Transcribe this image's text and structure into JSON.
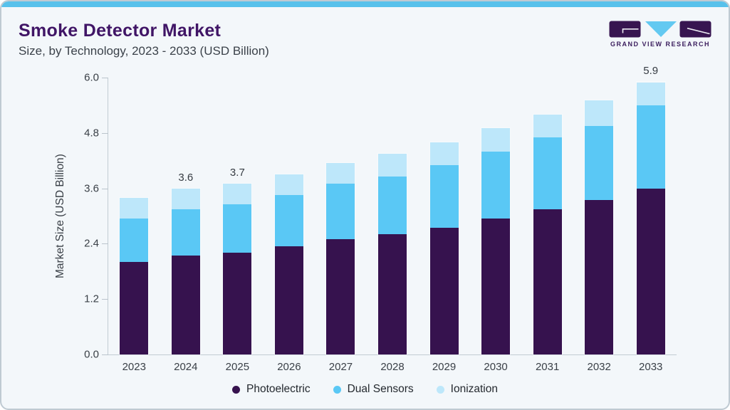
{
  "header": {
    "title": "Smoke Detector Market",
    "subtitle": "Size, by Technology, 2023 - 2033 (USD Billion)",
    "logo_text": "GRAND VIEW RESEARCH"
  },
  "theme": {
    "accent_top_bar": "#58c1eb",
    "title_purple": "#401566",
    "card_background": "#f3f7fa",
    "axis_gray": "#c2ccd3",
    "logo_purple": "#371550",
    "logo_blue": "#63c9f1"
  },
  "chart_data": {
    "type": "bar",
    "stacked": true,
    "title": "Smoke Detector Market Size, by Technology, 2023 - 2033 (USD Billion)",
    "xlabel": "",
    "ylabel": "Market Size (USD Billion)",
    "ylim": [
      0,
      6
    ],
    "yticks": [
      "0.0",
      "1.2",
      "2.4",
      "3.6",
      "4.8",
      "6.0"
    ],
    "grid": false,
    "legend_position": "bottom",
    "categories": [
      "2023",
      "2024",
      "2025",
      "2026",
      "2027",
      "2028",
      "2029",
      "2030",
      "2031",
      "2032",
      "2033"
    ],
    "series": [
      {
        "name": "Photoelectric",
        "color": "#36124e",
        "values": [
          2.0,
          2.15,
          2.2,
          2.35,
          2.5,
          2.6,
          2.75,
          2.95,
          3.15,
          3.35,
          3.6
        ]
      },
      {
        "name": "Dual Sensors",
        "color": "#5ac8f5",
        "values": [
          0.95,
          1.0,
          1.05,
          1.1,
          1.2,
          1.25,
          1.35,
          1.45,
          1.55,
          1.6,
          1.8
        ]
      },
      {
        "name": "Ionization",
        "color": "#bde7fa",
        "values": [
          0.45,
          0.45,
          0.45,
          0.45,
          0.45,
          0.5,
          0.5,
          0.5,
          0.5,
          0.55,
          0.5
        ]
      }
    ],
    "bar_total_labels": [
      "",
      "3.6",
      "3.7",
      "",
      "",
      "",
      "",
      "",
      "",
      "",
      "5.9"
    ],
    "totals": [
      3.4,
      3.6,
      3.7,
      3.9,
      4.15,
      4.35,
      4.6,
      4.9,
      5.2,
      5.5,
      5.9
    ]
  }
}
